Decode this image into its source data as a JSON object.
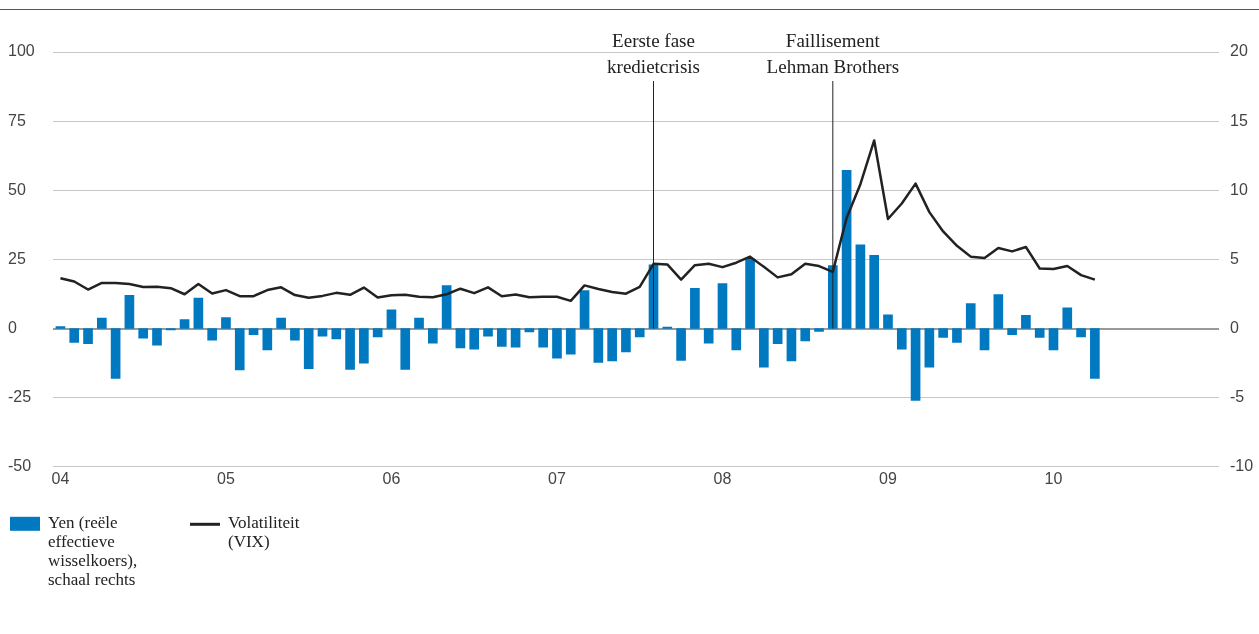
{
  "chart_data": {
    "type": "bar",
    "x": [
      "2004-01",
      "2004-02",
      "2004-03",
      "2004-04",
      "2004-05",
      "2004-06",
      "2004-07",
      "2004-08",
      "2004-09",
      "2004-10",
      "2004-11",
      "2004-12",
      "2005-01",
      "2005-02",
      "2005-03",
      "2005-04",
      "2005-05",
      "2005-06",
      "2005-07",
      "2005-08",
      "2005-09",
      "2005-10",
      "2005-11",
      "2005-12",
      "2006-01",
      "2006-02",
      "2006-03",
      "2006-04",
      "2006-05",
      "2006-06",
      "2006-07",
      "2006-08",
      "2006-09",
      "2006-10",
      "2006-11",
      "2006-12",
      "2007-01",
      "2007-02",
      "2007-03",
      "2007-04",
      "2007-05",
      "2007-06",
      "2007-07",
      "2007-08",
      "2007-09",
      "2007-10",
      "2007-11",
      "2007-12",
      "2008-01",
      "2008-02",
      "2008-03",
      "2008-04",
      "2008-05",
      "2008-06",
      "2008-07",
      "2008-08",
      "2008-09",
      "2008-10",
      "2008-11",
      "2008-12",
      "2009-01",
      "2009-02",
      "2009-03",
      "2009-04",
      "2009-05",
      "2009-06",
      "2009-07",
      "2009-08",
      "2009-09",
      "2009-10",
      "2009-11",
      "2009-12",
      "2010-01",
      "2010-02",
      "2010-03",
      "2010-04"
    ],
    "series": [
      {
        "name": "Yen (reële effectieve wisselkoers), schaal rechts",
        "axis": "y2",
        "color": "#0079c1",
        "values": [
          0.15,
          -1.0,
          -1.1,
          0.75,
          -3.6,
          2.4,
          -0.7,
          -1.2,
          -0.1,
          0.65,
          2.2,
          -0.85,
          0.8,
          -3.0,
          -0.45,
          -1.55,
          0.75,
          -0.85,
          -2.9,
          -0.55,
          -0.75,
          -2.95,
          -2.5,
          -0.6,
          1.35,
          -2.95,
          0.75,
          -1.05,
          3.1,
          -1.4,
          -1.5,
          -0.55,
          -1.3,
          -1.35,
          -0.25,
          -1.35,
          -2.15,
          -1.85,
          2.75,
          -2.45,
          -2.35,
          -1.7,
          -0.6,
          4.6,
          0.1,
          -2.3,
          2.9,
          -1.05,
          3.25,
          -1.55,
          5.05,
          -2.8,
          -1.1,
          -2.35,
          -0.9,
          -0.2,
          4.55,
          11.45,
          6.05,
          5.3,
          1.0,
          -1.5,
          -5.2,
          -2.8,
          -0.65,
          -1.0,
          1.8,
          -1.55,
          2.45,
          -0.45,
          0.95,
          -0.65,
          -1.55,
          1.5,
          -0.6,
          -3.6
        ]
      },
      {
        "name": "Volatiliteit (VIX)",
        "type": "line",
        "axis": "y",
        "color": "#222222",
        "values": [
          18.2,
          17.0,
          14.1,
          16.5,
          16.5,
          16.1,
          15.0,
          15.1,
          14.6,
          12.4,
          16.1,
          12.7,
          13.9,
          11.7,
          11.7,
          13.9,
          14.9,
          12.1,
          11.1,
          11.8,
          12.9,
          12.2,
          14.8,
          11.2,
          12.0,
          12.2,
          11.5,
          11.3,
          12.4,
          14.4,
          12.8,
          14.9,
          11.7,
          12.3,
          11.3,
          11.5,
          11.5,
          10.0,
          15.6,
          14.3,
          13.2,
          12.6,
          15.1,
          23.4,
          23.2,
          17.7,
          22.9,
          23.4,
          22.2,
          23.8,
          26.0,
          22.3,
          18.5,
          19.6,
          23.4,
          22.6,
          20.5,
          40.0,
          52.2,
          68.0,
          39.6,
          45.2,
          52.4,
          42.1,
          35.1,
          29.9,
          26.0,
          25.5,
          29.1,
          27.9,
          29.5,
          21.7,
          21.5,
          22.6,
          19.3,
          17.7
        ]
      }
    ],
    "xlim": [
      "2003-12-15",
      "2011-01-01"
    ],
    "xticks": [
      {
        "value": "2004",
        "label": "04"
      },
      {
        "value": "2005",
        "label": "05"
      },
      {
        "value": "2006",
        "label": "06"
      },
      {
        "value": "2007",
        "label": "07"
      },
      {
        "value": "2008",
        "label": "08"
      },
      {
        "value": "2009",
        "label": "09"
      },
      {
        "value": "2010",
        "label": "10"
      }
    ],
    "ylim": [
      -50,
      100
    ],
    "yticks": [
      -50,
      -25,
      0,
      25,
      50,
      75,
      100
    ],
    "y2lim": [
      -10,
      20
    ],
    "y2ticks": [
      -10,
      -5,
      0,
      5,
      10,
      15,
      20
    ],
    "ref_lines": [
      {
        "axis": "x",
        "value": "2007-08",
        "label": "Eerste fase\nkredietcrisis"
      },
      {
        "axis": "x",
        "value": "2008-09",
        "label": "Faillisement\nLehman Brothers"
      }
    ],
    "grid": "y",
    "legend": "bottom",
    "marker": "none",
    "line_style": "solid"
  }
}
